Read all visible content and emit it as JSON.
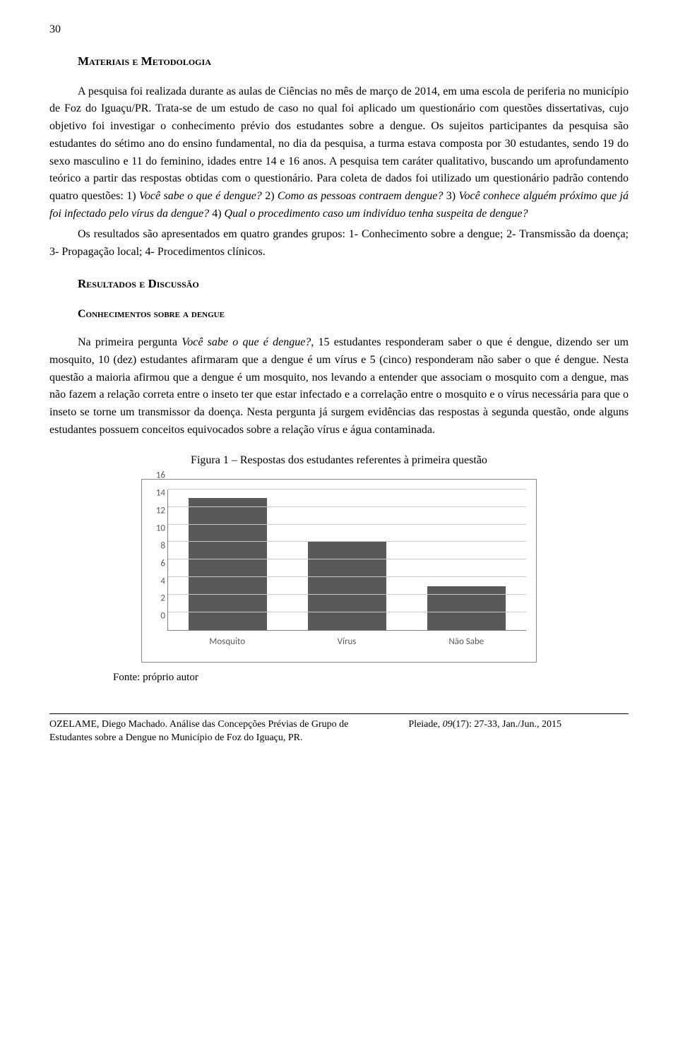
{
  "page_number": "30",
  "sections": {
    "materials_heading": "Materiais e Metodologia",
    "results_heading": "Resultados e Discussão",
    "sub_heading": "Conhecimentos sobre a dengue"
  },
  "paragraphs": {
    "p1a": "A pesquisa foi realizada durante as aulas de Ciências no mês de março de 2014, em uma escola de periferia no município de Foz do Iguaçu/PR. Trata-se de um estudo de caso no qual foi aplicado um questionário com questões dissertativas, cujo objetivo foi investigar o conhecimento prévio dos estudantes sobre a dengue. Os sujeitos participantes da pesquisa são estudantes do sétimo ano do ensino fundamental, no dia da pesquisa, a turma estava composta por 30 estudantes, sendo 19 do sexo masculino e 11 do feminino, idades entre 14 e 16 anos. A pesquisa tem caráter qualitativo, buscando um aprofundamento teórico a partir das respostas obtidas com o questionário. Para coleta de dados foi utilizado um questionário padrão contendo quatro questões: 1) ",
    "p1_q1": "Você sabe o que é dengue?",
    "p1b": " 2) ",
    "p1_q2": "Como as pessoas contraem dengue?",
    "p1c": " 3) ",
    "p1_q3": "Você conhece alguém próximo que já foi infectado pelo vírus da dengue?",
    "p1d": " 4) ",
    "p1_q4": "Qual o procedimento caso um indivíduo tenha suspeita de dengue?",
    "p2": "Os resultados são apresentados em quatro grandes grupos: 1- Conhecimento sobre a dengue; 2- Transmissão da doença; 3- Propagação local; 4- Procedimentos clínicos.",
    "p3a": "Na primeira pergunta ",
    "p3_q": "Você sabe o que é dengue?",
    "p3b": ", 15 estudantes responderam saber o que é dengue, dizendo ser um mosquito, 10 (dez) estudantes afirmaram que a dengue é um vírus e 5 (cinco) responderam não saber o que é dengue. Nesta questão a maioria afirmou que a dengue é um mosquito, nos levando a entender que associam o mosquito com a dengue, mas não fazem a relação correta entre o inseto ter que estar infectado e a correlação entre o mosquito e o vírus necessária para que o inseto se torne um transmissor da doença. Nesta pergunta já surgem evidências das respostas à segunda questão, onde alguns estudantes possuem conceitos equivocados sobre a relação vírus e água contaminada."
  },
  "figure": {
    "caption": "Figura 1 – Respostas dos estudantes referentes à primeira questão",
    "source": "Fonte: próprio autor",
    "chart": {
      "type": "bar",
      "categories": [
        "Mosquito",
        "Vírus",
        "Não Sabe"
      ],
      "values": [
        15,
        10,
        5
      ],
      "bar_color": "#595959",
      "ylim": [
        0,
        16
      ],
      "ytick_step": 2,
      "yticks": [
        0,
        2,
        4,
        6,
        8,
        10,
        12,
        14,
        16
      ],
      "grid_color": "#c8c8c8",
      "axis_color": "#808080",
      "tick_font_color": "#595959",
      "tick_fontsize": 13,
      "background_color": "#ffffff",
      "border_color": "#888888"
    }
  },
  "footer": {
    "left_author": "OZELAME, Diego Machado.",
    "left_title": "  Análise das Concepções Prévias de Grupo de Estudantes sobre a Dengue no Município de Foz do Iguaçu, PR.",
    "right_a": "Pleiade, ",
    "right_vol": "09",
    "right_b": "(17): 27-33, Jan./Jun., 2015"
  }
}
